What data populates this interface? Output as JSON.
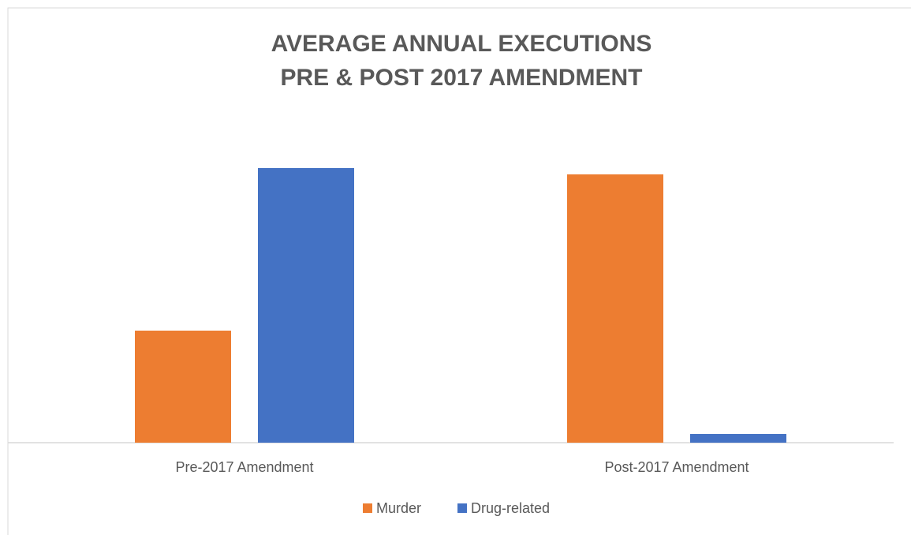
{
  "chart_data": {
    "type": "bar",
    "title": [
      "AVERAGE ANNUAL EXECUTIONS",
      "PRE & POST 2017 AMENDMENT"
    ],
    "categories": [
      "Pre-2017 Amendment",
      "Post-2017 Amendment"
    ],
    "series": [
      {
        "name": "Murder",
        "color": "#ed7d31",
        "values": [
          142,
          340
        ]
      },
      {
        "name": "Drug-related",
        "color": "#4472c4",
        "values": [
          348,
          11
        ]
      }
    ],
    "ylim": [
      0,
      400
    ],
    "legend": "bottom"
  }
}
